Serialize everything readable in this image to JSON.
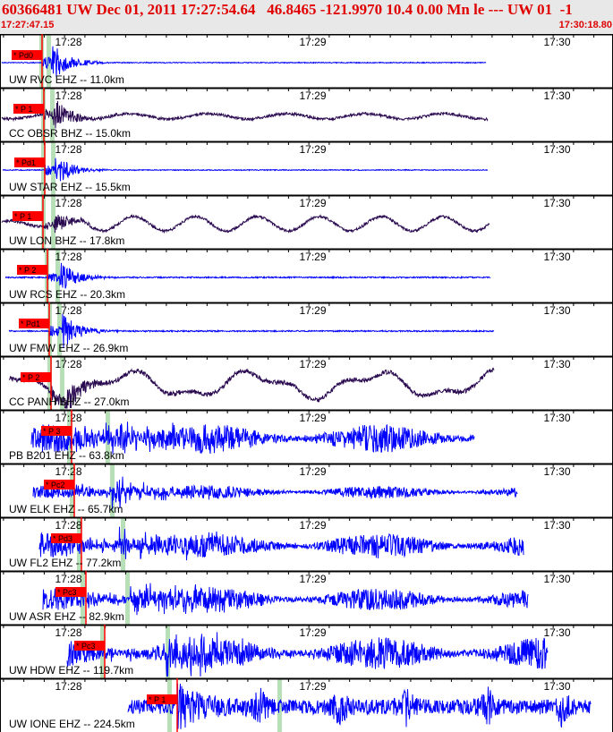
{
  "header": {
    "title": "60366481 UW Dec 01, 2011 17:27:54.64   46.8465 -121.9970 10.4 0.00 Mn le --- UW 01  -1",
    "start_time": "17:27:47.15",
    "end_time": "17:30:18.80"
  },
  "time_labels": [
    "17:28",
    "17:29",
    "17:30"
  ],
  "colors": {
    "header_text": "#e00000",
    "header_bg": "#e8e8e8",
    "pick": "#ff0000",
    "short_period": "#0000ff",
    "broadband": "#2a0a50",
    "window": "#b8e0b8"
  },
  "traces": [
    {
      "label": "UW RVC EHZ -- 11.0km",
      "pick": "* Pd0",
      "color": "short_period"
    },
    {
      "label": "CC OBSR BHZ -- 15.0km",
      "pick": "* P 1",
      "color": "broadband"
    },
    {
      "label": "UW STAR EHZ -- 15.5km",
      "pick": "* Pd1",
      "color": "short_period"
    },
    {
      "label": "UW LON BHZ -- 17.8km",
      "pick": "* P 1",
      "color": "broadband"
    },
    {
      "label": "UW RCS EHZ -- 20.3km",
      "pick": "* P 2",
      "color": "short_period"
    },
    {
      "label": "UW FMW EHZ -- 26.9km",
      "pick": "* Pd1",
      "color": "short_period"
    },
    {
      "label": "CC PANH BHZ -- 27.0km",
      "pick": "* P 2",
      "color": "broadband"
    },
    {
      "label": "PB B201 EHZ -- 63.8km",
      "pick": "* P 3",
      "color": "short_period"
    },
    {
      "label": "UW ELK EHZ -- 65.7km",
      "pick": "* Pc2",
      "color": "short_period"
    },
    {
      "label": "UW FL2 EHZ -- 77.2km",
      "pick": "* Pd3",
      "color": "short_period"
    },
    {
      "label": "UW ASR EHZ -- 82.9km",
      "pick": "* Pc3",
      "color": "short_period"
    },
    {
      "label": "UW HDW EHZ -- 119.7km",
      "pick": "* Pc3",
      "color": "short_period"
    },
    {
      "label": "UW IONE EHZ -- 224.5km",
      "pick": "* P 1",
      "color": "short_period"
    }
  ]
}
